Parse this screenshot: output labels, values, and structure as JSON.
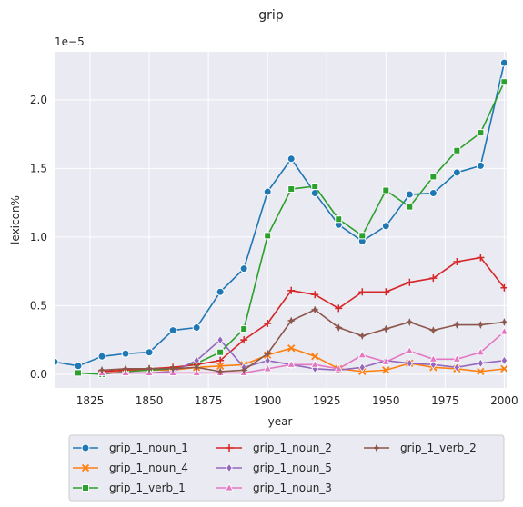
{
  "chart_data": {
    "type": "line",
    "title": "grip",
    "xlabel": "year",
    "ylabel": "lexicon%",
    "y_offset_text": "1e−5",
    "y_scale": 1e-05,
    "xlim": [
      1810,
      2001
    ],
    "ylim": [
      -0.1,
      2.35
    ],
    "x_ticks": [
      1825,
      1850,
      1875,
      1900,
      1925,
      1950,
      1975,
      2000
    ],
    "y_ticks": [
      0.0,
      0.5,
      1.0,
      1.5,
      2.0
    ],
    "y_tick_labels": [
      "0.0",
      "0.5",
      "1.0",
      "1.5",
      "2.0"
    ],
    "grid": true,
    "legend_position": "bottom-center",
    "series": [
      {
        "name": "grip_1_noun_1",
        "color": "#1f77b4",
        "marker": "circle",
        "x": [
          1810,
          1820,
          1830,
          1840,
          1850,
          1860,
          1870,
          1880,
          1890,
          1900,
          1910,
          1920,
          1930,
          1940,
          1950,
          1960,
          1970,
          1980,
          1990,
          2000
        ],
        "values": [
          0.09,
          0.06,
          0.13,
          0.15,
          0.16,
          0.32,
          0.34,
          0.6,
          0.77,
          1.33,
          1.57,
          1.32,
          1.09,
          0.97,
          1.08,
          1.31,
          1.32,
          1.47,
          1.52,
          2.27
        ]
      },
      {
        "name": "grip_1_noun_4",
        "color": "#ff7f0e",
        "marker": "x",
        "x": [
          1830,
          1840,
          1850,
          1860,
          1870,
          1880,
          1890,
          1900,
          1910,
          1920,
          1930,
          1940,
          1950,
          1960,
          1970,
          1980,
          1990,
          2000
        ],
        "values": [
          0.01,
          0.02,
          0.03,
          0.03,
          0.05,
          0.06,
          0.07,
          0.14,
          0.19,
          0.13,
          0.04,
          0.02,
          0.03,
          0.08,
          0.05,
          0.04,
          0.02,
          0.04
        ]
      },
      {
        "name": "grip_1_verb_1",
        "color": "#2ca02c",
        "marker": "square",
        "x": [
          1820,
          1830,
          1840,
          1850,
          1860,
          1870,
          1880,
          1890,
          1900,
          1910,
          1920,
          1930,
          1940,
          1950,
          1960,
          1970,
          1980,
          1990,
          2000
        ],
        "values": [
          0.01,
          0.0,
          0.02,
          0.03,
          0.04,
          0.08,
          0.16,
          0.33,
          1.01,
          1.35,
          1.37,
          1.13,
          1.01,
          1.34,
          1.22,
          1.44,
          1.63,
          1.76,
          2.13
        ]
      },
      {
        "name": "grip_1_noun_2",
        "color": "#d62728",
        "marker": "plus",
        "x": [
          1830,
          1840,
          1850,
          1860,
          1870,
          1880,
          1890,
          1900,
          1910,
          1920,
          1930,
          1940,
          1950,
          1960,
          1970,
          1980,
          1990,
          2000
        ],
        "values": [
          0.02,
          0.03,
          0.04,
          0.05,
          0.07,
          0.1,
          0.25,
          0.37,
          0.61,
          0.58,
          0.48,
          0.6,
          0.6,
          0.67,
          0.7,
          0.82,
          0.85,
          0.63
        ]
      },
      {
        "name": "grip_1_noun_5",
        "color": "#9467bd",
        "marker": "diamond",
        "x": [
          1830,
          1840,
          1850,
          1860,
          1870,
          1880,
          1890,
          1900,
          1910,
          1920,
          1930,
          1940,
          1950,
          1960,
          1970,
          1980,
          1990,
          2000
        ],
        "values": [
          0.01,
          0.01,
          0.01,
          0.02,
          0.1,
          0.25,
          0.05,
          0.1,
          0.07,
          0.04,
          0.03,
          0.05,
          0.1,
          0.08,
          0.07,
          0.05,
          0.08,
          0.1
        ]
      },
      {
        "name": "grip_1_noun_3",
        "color": "#e377c2",
        "marker": "triangle",
        "x": [
          1830,
          1840,
          1850,
          1860,
          1870,
          1880,
          1890,
          1900,
          1910,
          1920,
          1930,
          1940,
          1950,
          1960,
          1970,
          1980,
          1990,
          2000
        ],
        "values": [
          0.01,
          0.01,
          0.01,
          0.01,
          0.01,
          0.01,
          0.01,
          0.04,
          0.07,
          0.07,
          0.04,
          0.14,
          0.09,
          0.17,
          0.11,
          0.11,
          0.16,
          0.31
        ]
      },
      {
        "name": "grip_1_verb_2",
        "color": "#8c564b",
        "marker": "star",
        "x": [
          1830,
          1840,
          1850,
          1860,
          1870,
          1880,
          1890,
          1900,
          1910,
          1920,
          1930,
          1940,
          1950,
          1960,
          1970,
          1980,
          1990,
          2000
        ],
        "values": [
          0.03,
          0.04,
          0.04,
          0.04,
          0.05,
          0.02,
          0.03,
          0.15,
          0.39,
          0.47,
          0.34,
          0.28,
          0.33,
          0.38,
          0.32,
          0.36,
          0.36,
          0.38
        ]
      }
    ],
    "legend_order": [
      0,
      1,
      2,
      3,
      4,
      5,
      6
    ]
  }
}
